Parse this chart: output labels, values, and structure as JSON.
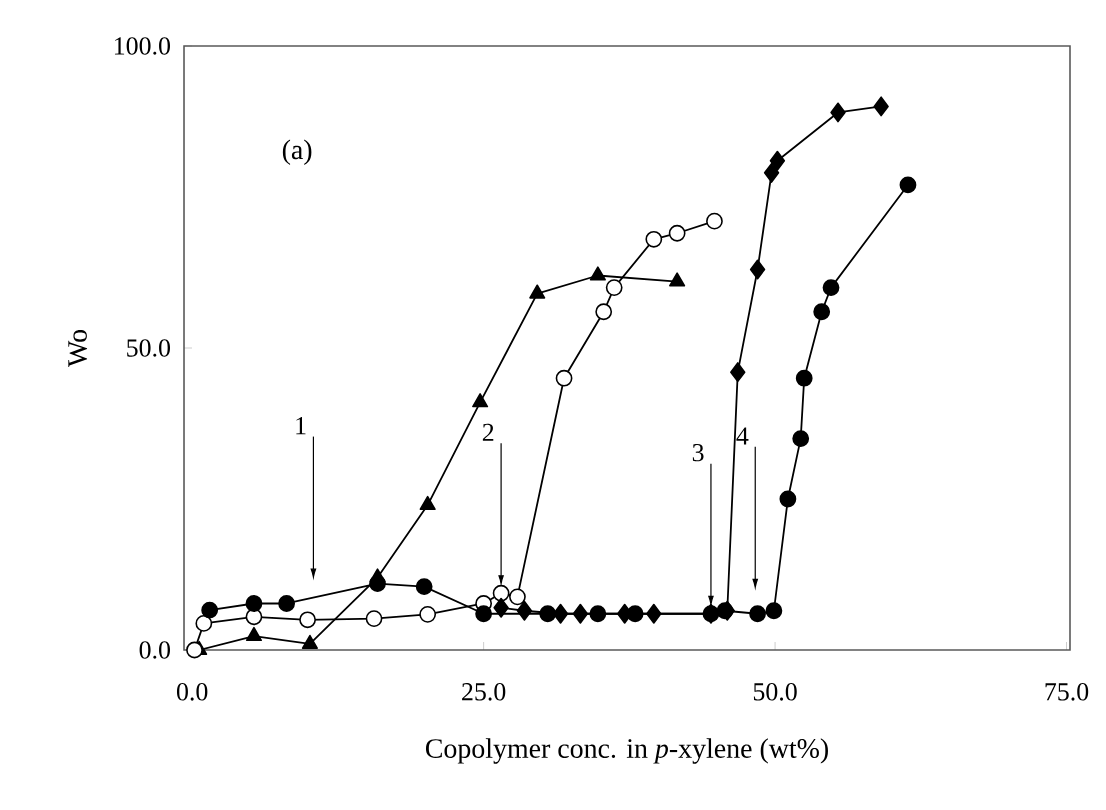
{
  "chart_data": {
    "type": "line",
    "xlabel": "Copolymer conc. in *p*-xylene (wt%)",
    "ylabel": "Wo",
    "xlim": [
      -0.7,
      75.3
    ],
    "ylim": [
      0,
      100
    ],
    "xticks": [
      {
        "value": 0,
        "label": "0.0"
      },
      {
        "value": 25,
        "label": "25.0"
      },
      {
        "value": 50,
        "label": "50.0"
      },
      {
        "value": 75,
        "label": "75.0"
      }
    ],
    "yticks": [
      {
        "value": 0,
        "label": "0.0"
      },
      {
        "value": 50,
        "label": "50.0"
      },
      {
        "value": 100,
        "label": "100.0"
      }
    ],
    "grid": false,
    "line_style": "solid",
    "series": [
      {
        "color": "#000000",
        "marker": "triangle",
        "x": [
          0.6,
          5.3,
          10.1,
          15.9,
          20.2,
          24.7,
          29.6,
          34.8,
          41.6
        ],
        "values": [
          0,
          2.3,
          1,
          12,
          24,
          41,
          59,
          62,
          61
        ]
      },
      {
        "color": "#ffffff",
        "marker": "circle",
        "x": [
          0.2,
          1,
          5.3,
          9.9,
          15.6,
          20.2,
          25,
          26.5,
          27.9,
          31.9,
          35.3,
          36.2,
          39.6,
          41.6,
          44.8
        ],
        "values": [
          0,
          4.4,
          5.5,
          5,
          5.2,
          5.9,
          7.7,
          9.4,
          8.8,
          45,
          56,
          60,
          68,
          69,
          71
        ]
      },
      {
        "color": "#000000",
        "marker": "diamond",
        "x": [
          26.5,
          28.5,
          31.6,
          33.3,
          37.1,
          39.6,
          44.5,
          45.9,
          46.8,
          48.5,
          49.7,
          50.2,
          55.4,
          59.1
        ],
        "values": [
          7,
          6.5,
          6,
          6,
          6,
          6,
          6,
          6.5,
          46,
          63,
          79,
          81,
          89,
          90
        ]
      },
      {
        "color": "#000000",
        "marker": "circle",
        "x": [
          1.5,
          5.3,
          8.1,
          15.9,
          19.9,
          25,
          30.5,
          34.8,
          38,
          44.5,
          45.7,
          48.5,
          49.9,
          51.1,
          52.2,
          52.5,
          54,
          54.8,
          61.4
        ],
        "values": [
          6.6,
          7.7,
          7.7,
          11,
          10.5,
          6,
          6,
          6,
          6,
          6,
          6.5,
          6,
          6.5,
          25,
          35,
          45,
          56,
          60,
          77
        ]
      }
    ],
    "annotations": [
      "(a)",
      {
        "text": "1",
        "x": 10.4,
        "y": 10.5
      },
      {
        "text": "2",
        "x": 26.5,
        "y": 9.4
      },
      {
        "text": "3",
        "x": 44.5,
        "y": 6
      },
      {
        "text": "4",
        "x": 48.3,
        "y": 8.8
      }
    ]
  }
}
